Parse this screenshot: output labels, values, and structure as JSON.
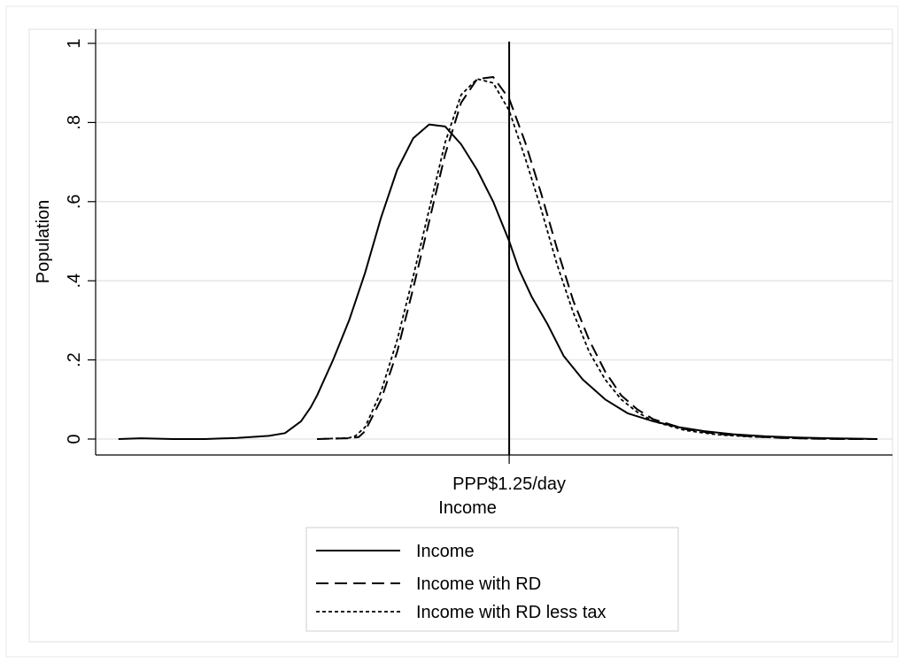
{
  "chart_data": {
    "type": "line",
    "title": "",
    "xlabel": "Income",
    "ylabel": "Population",
    "x_tick_labels": [
      "PPP$1.25/day"
    ],
    "y_ticks": [
      0,
      0.2,
      0.4,
      0.6,
      0.8,
      1
    ],
    "y_tick_labels": [
      "0",
      ".2",
      ".4",
      ".6",
      ".8",
      "1"
    ],
    "ylim": [
      0,
      1
    ],
    "grid": true,
    "legend_position": "bottom",
    "reference_line_x": 1.25,
    "series": [
      {
        "name": "Income",
        "style": "solid",
        "x": [
          0.03,
          0.1,
          0.2,
          0.3,
          0.4,
          0.5,
          0.55,
          0.6,
          0.63,
          0.65,
          0.7,
          0.75,
          0.8,
          0.85,
          0.9,
          0.95,
          1.0,
          1.05,
          1.1,
          1.15,
          1.2,
          1.25,
          1.28,
          1.32,
          1.37,
          1.42,
          1.48,
          1.55,
          1.62,
          1.7,
          1.78,
          1.86,
          1.95,
          2.05,
          2.15,
          2.25,
          2.35,
          2.4
        ],
        "y": [
          0.0,
          0.002,
          0.0,
          0.0,
          0.003,
          0.008,
          0.015,
          0.045,
          0.08,
          0.11,
          0.2,
          0.3,
          0.42,
          0.56,
          0.68,
          0.76,
          0.795,
          0.79,
          0.745,
          0.68,
          0.6,
          0.5,
          0.43,
          0.36,
          0.29,
          0.21,
          0.15,
          0.1,
          0.065,
          0.045,
          0.03,
          0.02,
          0.012,
          0.007,
          0.004,
          0.002,
          0.001,
          0.0
        ]
      },
      {
        "name": "Income with RD",
        "style": "dashed",
        "x": [
          0.65,
          0.75,
          0.78,
          0.8,
          0.85,
          0.9,
          0.95,
          1.0,
          1.05,
          1.1,
          1.15,
          1.2,
          1.25,
          1.3,
          1.35,
          1.4,
          1.45,
          1.5,
          1.55,
          1.6,
          1.65,
          1.7,
          1.8,
          1.9,
          2.0,
          2.1,
          2.2,
          2.3,
          2.4
        ],
        "y": [
          0.0,
          0.002,
          0.005,
          0.02,
          0.1,
          0.22,
          0.38,
          0.55,
          0.72,
          0.85,
          0.91,
          0.915,
          0.86,
          0.75,
          0.62,
          0.48,
          0.35,
          0.25,
          0.17,
          0.11,
          0.075,
          0.05,
          0.025,
          0.013,
          0.007,
          0.003,
          0.001,
          0.0,
          0.0
        ]
      },
      {
        "name": "Income with RD less tax",
        "style": "dotted",
        "x": [
          0.65,
          0.75,
          0.77,
          0.8,
          0.85,
          0.9,
          0.95,
          1.0,
          1.05,
          1.1,
          1.15,
          1.2,
          1.25,
          1.3,
          1.35,
          1.4,
          1.45,
          1.5,
          1.55,
          1.6,
          1.65,
          1.7,
          1.8,
          1.9,
          2.0,
          2.1,
          2.2,
          2.3,
          2.4
        ],
        "y": [
          0.0,
          0.003,
          0.008,
          0.03,
          0.12,
          0.25,
          0.41,
          0.58,
          0.75,
          0.87,
          0.91,
          0.9,
          0.83,
          0.71,
          0.58,
          0.44,
          0.32,
          0.22,
          0.15,
          0.1,
          0.068,
          0.045,
          0.022,
          0.011,
          0.006,
          0.003,
          0.001,
          0.0,
          0.0
        ]
      }
    ]
  }
}
